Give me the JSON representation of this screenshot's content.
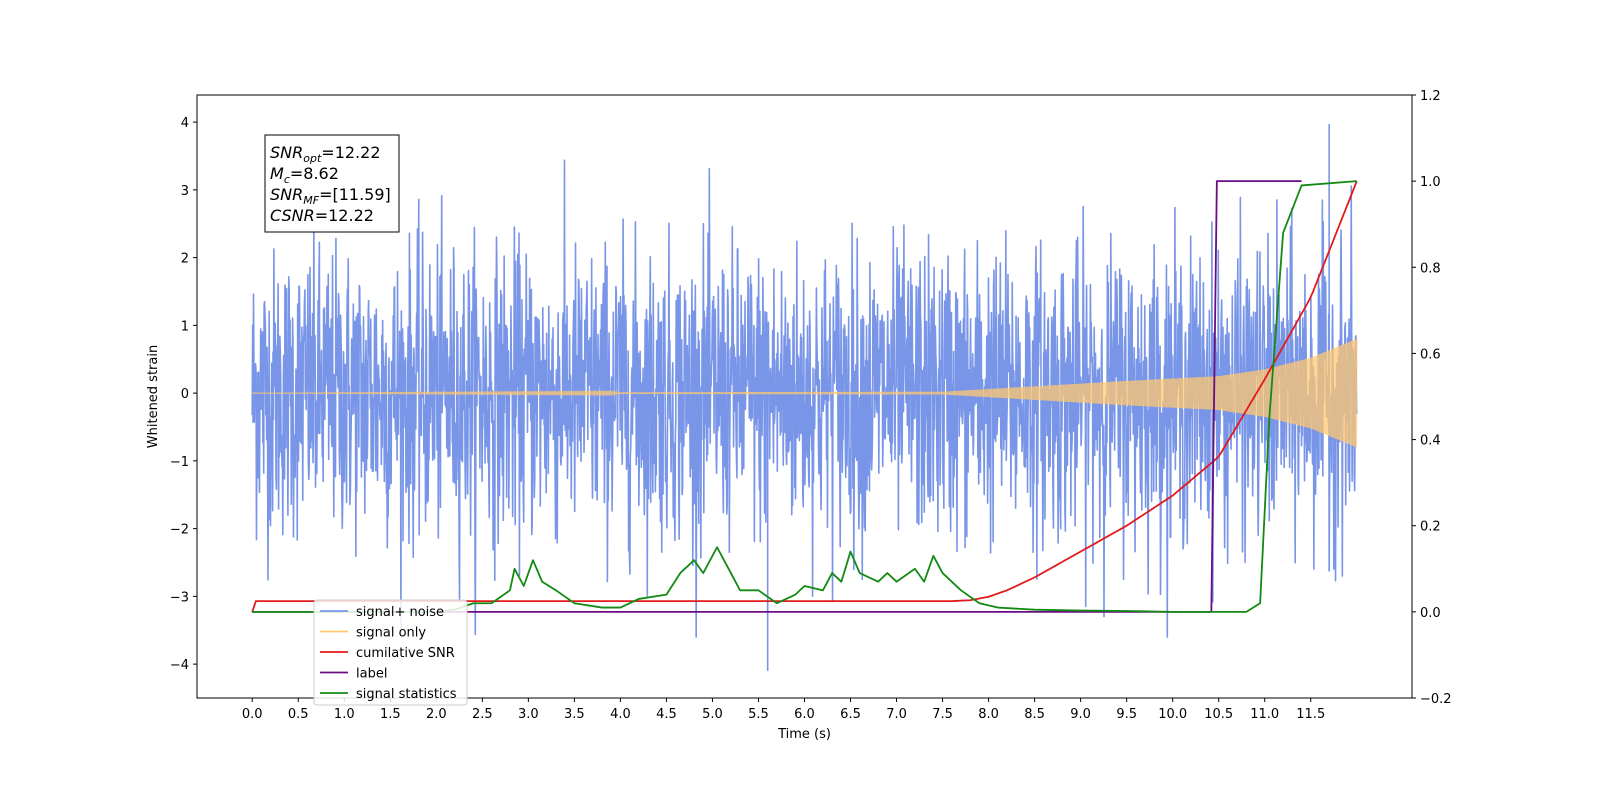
{
  "chart_data": {
    "type": "line",
    "title": "",
    "xlabel": "Time (s)",
    "ylabel": "Whitened strain",
    "ylabel_right": "",
    "xlim": [
      -0.6,
      12.6
    ],
    "ylim": [
      -4.5,
      4.4
    ],
    "ylim_right": [
      -0.2,
      1.2
    ],
    "x_ticks": [
      0.0,
      0.5,
      1.0,
      1.5,
      2.0,
      2.5,
      3.0,
      3.5,
      4.0,
      4.5,
      5.0,
      5.5,
      6.0,
      6.5,
      7.0,
      7.5,
      8.0,
      8.5,
      9.0,
      9.5,
      10.0,
      10.5,
      11.0,
      11.5
    ],
    "x_tick_labels": [
      "0.0",
      "0.5",
      "1.0",
      "1.5",
      "2.0",
      "2.5",
      "3.0",
      "3.5",
      "4.0",
      "4.5",
      "5.0",
      "5.5",
      "6.0",
      "6.5",
      "7.0",
      "7.5",
      "8.0",
      "8.5",
      "9.0",
      "9.5",
      "10.0",
      "10.5",
      "11.0",
      "11.5"
    ],
    "y_ticks": [
      -4,
      -3,
      -2,
      -1,
      0,
      1,
      2,
      3,
      4
    ],
    "y_tick_labels": [
      "−4",
      "−3",
      "−2",
      "−1",
      "0",
      "1",
      "2",
      "3",
      "4"
    ],
    "y_ticks_right": [
      -0.2,
      0.0,
      0.2,
      0.4,
      0.6,
      0.8,
      1.0,
      1.2
    ],
    "y_tick_labels_right": [
      "−0.2",
      "0.0",
      "0.2",
      "0.4",
      "0.6",
      "0.8",
      "1.0",
      "1.2"
    ],
    "grid": false,
    "legend_position": "lower-left",
    "annotation": {
      "lines": [
        {
          "sym": "SNR",
          "sub": "opt",
          "value": "=12.22"
        },
        {
          "sym": "M",
          "sub": "c",
          "value": "=8.62"
        },
        {
          "sym": "SNR",
          "sub": "MF",
          "value": "=[11.59]"
        },
        {
          "sym": "CSNR",
          "sub": "",
          "value": "=12.22"
        }
      ]
    },
    "series": [
      {
        "name": "signal+ noise",
        "color": "#7895e8",
        "axis": "left",
        "kind": "noise",
        "x_range": [
          0.0,
          12.0
        ],
        "typical_amplitude": 2.2,
        "max": 3.97,
        "min": -4.1
      },
      {
        "name": "signal only",
        "color": "#ffc870",
        "axis": "left",
        "kind": "chirp",
        "x_range": [
          0.0,
          12.0
        ],
        "amplitude_points": [
          [
            0,
            0.0
          ],
          [
            7.5,
            0.02
          ],
          [
            8.5,
            0.1
          ],
          [
            9.5,
            0.18
          ],
          [
            10.5,
            0.25
          ],
          [
            11.0,
            0.35
          ],
          [
            11.5,
            0.52
          ],
          [
            12.0,
            0.8
          ]
        ]
      },
      {
        "name": "cumilative SNR",
        "color": "#e31a1c",
        "axis": "right",
        "points": [
          [
            0.0,
            0.0
          ],
          [
            0.01,
            0.025
          ],
          [
            7.6,
            0.025
          ],
          [
            7.8,
            0.027
          ],
          [
            8.0,
            0.035
          ],
          [
            8.2,
            0.05
          ],
          [
            8.5,
            0.08
          ],
          [
            9.0,
            0.14
          ],
          [
            9.5,
            0.2
          ],
          [
            10.0,
            0.27
          ],
          [
            10.5,
            0.36
          ],
          [
            11.0,
            0.54
          ],
          [
            11.5,
            0.73
          ],
          [
            12.0,
            1.0
          ]
        ]
      },
      {
        "name": "label",
        "color": "#6a0d83",
        "axis": "right",
        "points": [
          [
            0.0,
            0.0
          ],
          [
            10.42,
            0.0
          ],
          [
            10.48,
            1.0
          ],
          [
            11.4,
            1.0
          ]
        ]
      },
      {
        "name": "signal only",
        "color": "none",
        "axis": "right",
        "points": []
      },
      {
        "name": "signal statistics",
        "color": "#138a13",
        "axis": "right",
        "points": [
          [
            0.0,
            0.0
          ],
          [
            2.0,
            0.0
          ],
          [
            2.2,
            0.005
          ],
          [
            2.4,
            0.02
          ],
          [
            2.6,
            0.02
          ],
          [
            2.8,
            0.05
          ],
          [
            2.85,
            0.1
          ],
          [
            2.95,
            0.06
          ],
          [
            3.05,
            0.12
          ],
          [
            3.15,
            0.07
          ],
          [
            3.3,
            0.05
          ],
          [
            3.5,
            0.02
          ],
          [
            3.8,
            0.01
          ],
          [
            4.0,
            0.01
          ],
          [
            4.2,
            0.03
          ],
          [
            4.5,
            0.04
          ],
          [
            4.65,
            0.09
          ],
          [
            4.8,
            0.12
          ],
          [
            4.9,
            0.09
          ],
          [
            5.05,
            0.15
          ],
          [
            5.15,
            0.11
          ],
          [
            5.3,
            0.05
          ],
          [
            5.5,
            0.05
          ],
          [
            5.7,
            0.02
          ],
          [
            5.9,
            0.04
          ],
          [
            6.0,
            0.06
          ],
          [
            6.2,
            0.05
          ],
          [
            6.3,
            0.09
          ],
          [
            6.4,
            0.07
          ],
          [
            6.5,
            0.14
          ],
          [
            6.6,
            0.09
          ],
          [
            6.8,
            0.07
          ],
          [
            6.9,
            0.09
          ],
          [
            7.0,
            0.07
          ],
          [
            7.2,
            0.1
          ],
          [
            7.3,
            0.07
          ],
          [
            7.4,
            0.13
          ],
          [
            7.5,
            0.09
          ],
          [
            7.7,
            0.05
          ],
          [
            7.9,
            0.02
          ],
          [
            8.1,
            0.01
          ],
          [
            8.5,
            0.005
          ],
          [
            9.0,
            0.003
          ],
          [
            9.5,
            0.002
          ],
          [
            10.0,
            0.0
          ],
          [
            10.8,
            0.0
          ],
          [
            10.95,
            0.02
          ],
          [
            11.05,
            0.45
          ],
          [
            11.2,
            0.88
          ],
          [
            11.4,
            0.99
          ],
          [
            12.0,
            1.0
          ]
        ]
      }
    ],
    "legend": [
      "signal+ noise",
      "signal only",
      "cumilative SNR",
      "label",
      "signal statistics"
    ]
  }
}
